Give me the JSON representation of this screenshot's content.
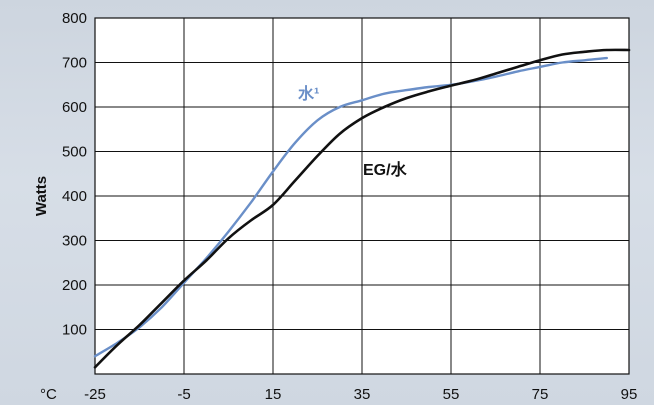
{
  "chart_data": {
    "type": "line",
    "xlabel": "",
    "ylabel": "Watts",
    "x_unit_label": "°C",
    "xlim": [
      -25,
      95
    ],
    "ylim": [
      0,
      800
    ],
    "x_ticks": [
      "-25",
      "-5",
      "15",
      "35",
      "55",
      "75",
      "95"
    ],
    "y_ticks": [
      "100",
      "200",
      "300",
      "400",
      "500",
      "600",
      "700",
      "800"
    ],
    "grid": true,
    "series": [
      {
        "name": "水¹",
        "color": "#6a8fc8",
        "x": [
          -25,
          -20,
          -15,
          -10,
          -5,
          0,
          5,
          10,
          15,
          20,
          25,
          30,
          35,
          40,
          45,
          50,
          55,
          60,
          65,
          70,
          75,
          80,
          85,
          90
        ],
        "y": [
          40,
          70,
          105,
          150,
          205,
          260,
          320,
          385,
          455,
          520,
          570,
          600,
          615,
          630,
          638,
          645,
          650,
          658,
          668,
          680,
          690,
          700,
          705,
          710
        ]
      },
      {
        "name": "EG/水",
        "color": "#111111",
        "x": [
          -25,
          -20,
          -15,
          -10,
          -5,
          0,
          5,
          10,
          15,
          20,
          25,
          30,
          35,
          40,
          45,
          50,
          55,
          60,
          65,
          70,
          75,
          80,
          85,
          90,
          95
        ],
        "y": [
          15,
          65,
          110,
          160,
          210,
          255,
          305,
          345,
          380,
          435,
          490,
          540,
          575,
          600,
          620,
          635,
          648,
          660,
          675,
          690,
          705,
          718,
          724,
          728,
          728
        ]
      }
    ]
  }
}
